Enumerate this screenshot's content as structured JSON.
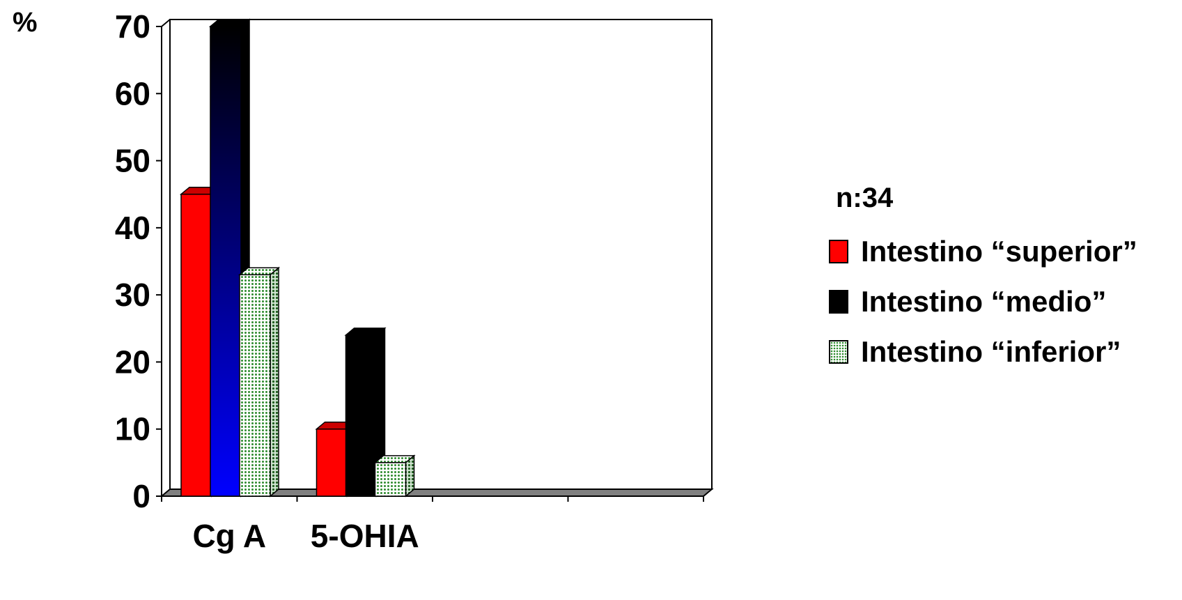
{
  "chart_data": {
    "type": "bar",
    "unit_label": "%",
    "categories": [
      "Cg A",
      "5-OHIA",
      "",
      ""
    ],
    "series": [
      {
        "name": "Intestino “superior”",
        "values": [
          45,
          10,
          null,
          null
        ],
        "color": "#ff0000",
        "pattern": "solid"
      },
      {
        "name": "Intestino “medio”",
        "values": [
          70,
          24,
          null,
          null
        ],
        "color": "#000000",
        "pattern": "solid"
      },
      {
        "name": "Intestino “inferior”",
        "values": [
          33,
          5,
          null,
          null
        ],
        "color": "#2e8b2e",
        "pattern": "dotted"
      }
    ],
    "ylim": [
      0,
      70
    ],
    "yticks": [
      0,
      10,
      20,
      30,
      40,
      50,
      60,
      70
    ],
    "grid": false,
    "three_d": true,
    "legend_position": "right"
  },
  "legend": {
    "note": "n:34"
  }
}
